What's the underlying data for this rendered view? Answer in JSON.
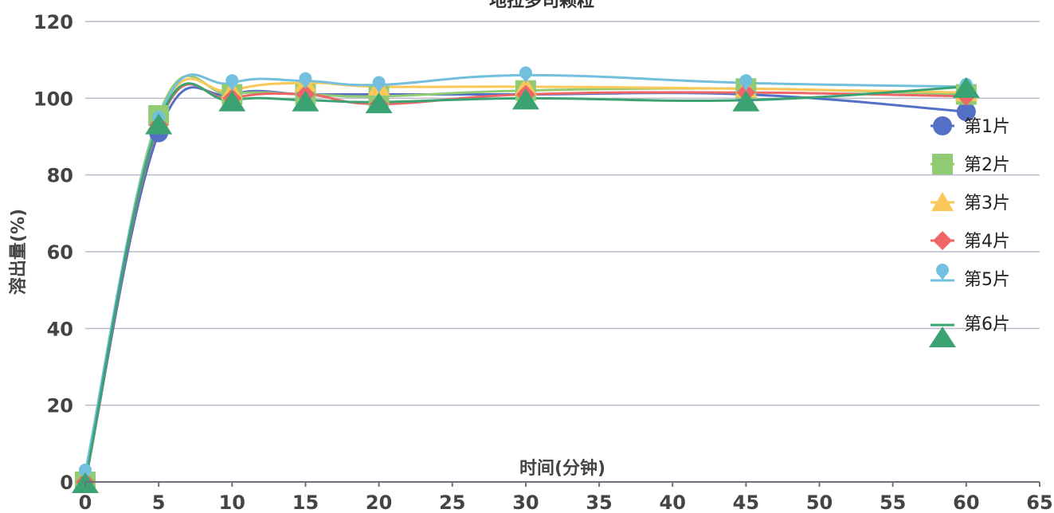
{
  "chart_data": {
    "type": "line",
    "title": "地拉多司颗粒",
    "xlabel": "时间(分钟)",
    "ylabel": "溶出量(%)",
    "xlim": [
      0,
      65
    ],
    "ylim": [
      0,
      120
    ],
    "x_ticks": [
      0,
      5,
      10,
      15,
      20,
      25,
      30,
      35,
      40,
      45,
      50,
      55,
      60,
      65
    ],
    "y_ticks": [
      0,
      20,
      40,
      60,
      80,
      100,
      120
    ],
    "grid": true,
    "legend_position": "right",
    "x": [
      0,
      5,
      10,
      15,
      20,
      30,
      45,
      60
    ],
    "series": [
      {
        "name": "第1片",
        "color": "#5470c6",
        "marker": "circle",
        "values": [
          0,
          91,
          101,
          101,
          101,
          101,
          101,
          96.5
        ]
      },
      {
        "name": "第2片",
        "color": "#91cc75",
        "marker": "square",
        "values": [
          0,
          95.5,
          101,
          101,
          100.5,
          102,
          102.5,
          101
        ]
      },
      {
        "name": "第3片",
        "color": "#fac858",
        "marker": "triangle",
        "values": [
          0,
          94,
          102,
          104,
          103,
          103,
          102.5,
          101.5
        ]
      },
      {
        "name": "第4片",
        "color": "#ee6666",
        "marker": "diamond",
        "values": [
          0,
          93,
          100,
          101,
          98.5,
          101,
          101.5,
          100.5
        ]
      },
      {
        "name": "第5片",
        "color": "#73c0de",
        "marker": "pin",
        "values": [
          2.5,
          94.5,
          104,
          104.5,
          103.5,
          106,
          104,
          103
        ]
      },
      {
        "name": "第6片",
        "color": "#3ba272",
        "marker": "triangle-down",
        "values": [
          0,
          93.5,
          99.5,
          99.5,
          99,
          100,
          99.5,
          103
        ]
      }
    ]
  }
}
